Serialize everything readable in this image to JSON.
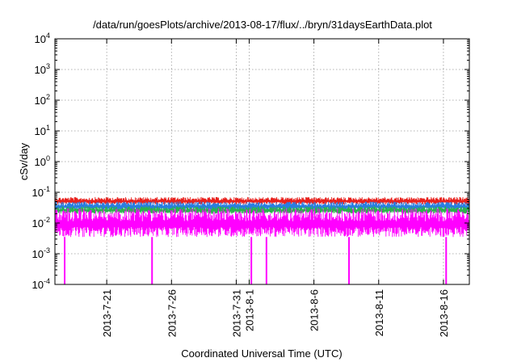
{
  "chart_data": {
    "type": "line",
    "title": "/data/run/goesPlots/archive/2013-08-17/flux/../bryn/31daysEarthData.plot",
    "xlabel": "Coordinated Universal Time (UTC)",
    "ylabel": "cSv/day",
    "y_scale": "log",
    "ylim": [
      0.0001,
      10000
    ],
    "y_ticks": [
      {
        "value": 0.0001,
        "mant": "10",
        "exp": "-4"
      },
      {
        "value": 0.001,
        "mant": "10",
        "exp": "-3"
      },
      {
        "value": 0.01,
        "mant": "10",
        "exp": "-2"
      },
      {
        "value": 0.1,
        "mant": "10",
        "exp": "-1"
      },
      {
        "value": 1,
        "mant": "10",
        "exp": "0"
      },
      {
        "value": 10,
        "mant": "10",
        "exp": "1"
      },
      {
        "value": 100,
        "mant": "10",
        "exp": "2"
      },
      {
        "value": 1000,
        "mant": "10",
        "exp": "3"
      },
      {
        "value": 10000,
        "mant": "10",
        "exp": "4"
      }
    ],
    "xlim": [
      "2013-07-17",
      "2013-08-18"
    ],
    "x_ticks": [
      {
        "date": "2013-07-21",
        "label": "2013-7-21"
      },
      {
        "date": "2013-07-26",
        "label": "2013-7-26"
      },
      {
        "date": "2013-07-31",
        "label": "2013-7-31"
      },
      {
        "date": "2013-08-01",
        "label": "2013-8-1"
      },
      {
        "date": "2013-08-06",
        "label": "2013-8-6"
      },
      {
        "date": "2013-08-11",
        "label": "2013-8-11"
      },
      {
        "date": "2013-08-16",
        "label": "2013-8-16"
      }
    ],
    "grid": true,
    "series": [
      {
        "color": "#e8211d",
        "band": [
          0.04,
          0.07
        ]
      },
      {
        "color": "#2a7de1",
        "band": [
          0.025,
          0.05
        ]
      },
      {
        "color": "#2bb24c",
        "band": [
          0.02,
          0.035
        ]
      },
      {
        "color": "#ff00ff",
        "band": [
          0.0035,
          0.03
        ]
      }
    ],
    "dropouts": [
      "2013-07-17 18:00",
      "2013-07-24 12:00",
      "2013-08-01 04:00",
      "2013-08-02 08:00",
      "2013-08-08 17:00",
      "2013-08-16 05:00"
    ],
    "dropout_min": 0.0001
  }
}
